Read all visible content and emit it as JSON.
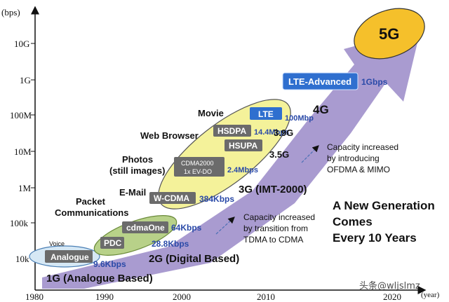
{
  "axes": {
    "y_unit": "(bps)",
    "x_unit": "(year)",
    "y_ticks": [
      "10G",
      "1G",
      "100M",
      "10M",
      "1M",
      "100k",
      "10k"
    ],
    "x_ticks": [
      "1980",
      "1990",
      "2000",
      "2010",
      "2020"
    ]
  },
  "generations": {
    "g1": "1G (Analogue Based)",
    "g2": "2G (Digital Based)",
    "g3": "3G (IMT-2000)",
    "g35": "3.5G",
    "g39": "3.9G",
    "g4": "4G",
    "g5": "5G"
  },
  "services": {
    "voice": "Voice",
    "packet1": "Packet",
    "packet2": "Communications",
    "email": "E-Mail",
    "photos1": "Photos",
    "photos2": "(still images)",
    "web": "Web Browser",
    "movie": "Movie"
  },
  "systems": {
    "analogue": "Analogue",
    "pdc": "PDC",
    "cdmaone": "cdmaOne",
    "wcdma": "W-CDMA",
    "cdma2000_1": "CDMA2000",
    "cdma2000_2": "1x EV-DO",
    "hsupa": "HSUPA",
    "hsdpa": "HSDPA",
    "lte": "LTE",
    "lte_adv": "LTE-Advanced"
  },
  "rates": {
    "r1": "9.6Kbps",
    "r2": "28.8Kbps",
    "r3": "64Kbps",
    "r4": "384Kbps",
    "r5": "2.4Mbps",
    "r6": "14.4Mbps",
    "r7": "100Mbp",
    "r8": "1Gbps"
  },
  "notes": {
    "tdma": [
      "Capacity increased",
      "by transition from",
      "TDMA to CDMA"
    ],
    "ofdma": [
      "Capacity increased",
      "by introducing",
      "OFDMA & MIMO"
    ],
    "headline": [
      "A New Generation",
      "Comes",
      "Every 10 Years"
    ]
  },
  "watermark": "头条@wljslmz",
  "colors": {
    "arrow": "#a99bd0",
    "g1_ellipse": "#d6e8f5",
    "g2_ellipse": "#b8d189",
    "g3_ellipse": "#f4f29a",
    "g5_ellipse": "#f5c02b",
    "box_gray": "#6b6b6b",
    "box_blue": "#2f6fcf",
    "rate_blue": "#2a4aa8"
  }
}
